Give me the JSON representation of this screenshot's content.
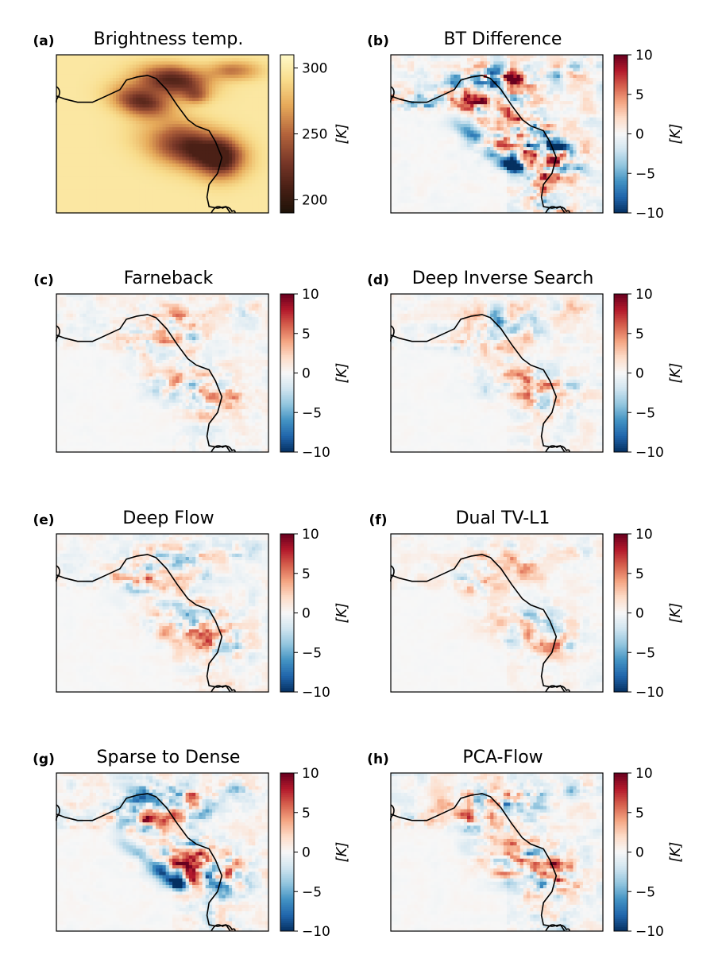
{
  "figure": {
    "panels": [
      {
        "letter": "(a)",
        "title": "Brightness temp.",
        "cmap": "afmhot",
        "ticks": [
          "300",
          "250",
          "200"
        ],
        "tick_values": [
          300,
          250,
          200
        ],
        "vmin": 190,
        "vmax": 310,
        "unit": "[K]"
      },
      {
        "letter": "(b)",
        "title": "BT Difference",
        "cmap": "RdBu_r",
        "ticks": [
          "10",
          "5",
          "0",
          "−5",
          "−10"
        ],
        "tick_values": [
          10,
          5,
          0,
          -5,
          -10
        ],
        "vmin": -10,
        "vmax": 10,
        "unit": "[K]",
        "pattern": {
          "strength": 1.0,
          "band": 1.0,
          "cold": 1.0,
          "seed": 2
        }
      },
      {
        "letter": "(c)",
        "title": "Farneback",
        "cmap": "RdBu_r",
        "ticks": [
          "10",
          "5",
          "0",
          "−5",
          "−10"
        ],
        "tick_values": [
          10,
          5,
          0,
          -5,
          -10
        ],
        "vmin": -10,
        "vmax": 10,
        "unit": "[K]",
        "pattern": {
          "strength": 0.55,
          "band": 0.35,
          "cold": 0.15,
          "seed": 3
        }
      },
      {
        "letter": "(d)",
        "title": "Deep Inverse Search",
        "cmap": "RdBu_r",
        "ticks": [
          "10",
          "5",
          "0",
          "−5",
          "−10"
        ],
        "tick_values": [
          10,
          5,
          0,
          -5,
          -10
        ],
        "vmin": -10,
        "vmax": 10,
        "unit": "[K]",
        "pattern": {
          "strength": 0.55,
          "band": 0.3,
          "cold": 0.1,
          "seed": 4
        }
      },
      {
        "letter": "(e)",
        "title": "Deep Flow",
        "cmap": "RdBu_r",
        "ticks": [
          "10",
          "5",
          "0",
          "−5",
          "−10"
        ],
        "tick_values": [
          10,
          5,
          0,
          -5,
          -10
        ],
        "vmin": -10,
        "vmax": 10,
        "unit": "[K]",
        "pattern": {
          "strength": 0.6,
          "band": 0.45,
          "cold": 0.1,
          "seed": 5
        }
      },
      {
        "letter": "(f)",
        "title": "Dual TV-L1",
        "cmap": "RdBu_r",
        "ticks": [
          "10",
          "5",
          "0",
          "−5",
          "−10"
        ],
        "tick_values": [
          10,
          5,
          0,
          -5,
          -10
        ],
        "vmin": -10,
        "vmax": 10,
        "unit": "[K]",
        "pattern": {
          "strength": 0.45,
          "band": 0.25,
          "cold": 0.05,
          "seed": 6
        }
      },
      {
        "letter": "(g)",
        "title": "Sparse to Dense",
        "cmap": "RdBu_r",
        "ticks": [
          "10",
          "5",
          "0",
          "−5",
          "−10"
        ],
        "tick_values": [
          10,
          5,
          0,
          -5,
          -10
        ],
        "vmin": -10,
        "vmax": 10,
        "unit": "[K]",
        "pattern": {
          "strength": 0.8,
          "band": 0.6,
          "cold": 0.75,
          "seed": 7
        }
      },
      {
        "letter": "(h)",
        "title": "PCA-Flow",
        "cmap": "RdBu_r",
        "ticks": [
          "10",
          "5",
          "0",
          "−5",
          "−10"
        ],
        "tick_values": [
          10,
          5,
          0,
          -5,
          -10
        ],
        "vmin": -10,
        "vmax": 10,
        "unit": "[K]",
        "pattern": {
          "strength": 0.75,
          "band": 0.65,
          "cold": 0.2,
          "seed": 8
        }
      }
    ]
  },
  "chart_data": [
    {
      "type": "heatmap",
      "title": "Brightness temp.",
      "colorbar_label": "[K]",
      "colorbar_range": [
        190,
        310
      ],
      "colorbar_ticks": [
        200,
        250,
        300
      ],
      "colormap": "afmhot (dark brown low → pale yellow high)",
      "features": "cold cloud band (~200–230 K) along coastline, warm background ~290–300 K"
    },
    {
      "type": "heatmap",
      "title": "BT Difference",
      "colorbar_label": "[K]",
      "colorbar_range": [
        -10,
        10
      ],
      "colorbar_ticks": [
        -10,
        -5,
        0,
        5,
        10
      ],
      "colormap": "RdBu_r"
    },
    {
      "type": "heatmap",
      "title": "Farneback",
      "colorbar_label": "[K]",
      "colorbar_range": [
        -10,
        10
      ],
      "colorbar_ticks": [
        -10,
        -5,
        0,
        5,
        10
      ],
      "colormap": "RdBu_r"
    },
    {
      "type": "heatmap",
      "title": "Deep Inverse Search",
      "colorbar_label": "[K]",
      "colorbar_range": [
        -10,
        10
      ],
      "colorbar_ticks": [
        -10,
        -5,
        0,
        5,
        10
      ],
      "colormap": "RdBu_r"
    },
    {
      "type": "heatmap",
      "title": "Deep Flow",
      "colorbar_label": "[K]",
      "colorbar_range": [
        -10,
        10
      ],
      "colorbar_ticks": [
        -10,
        -5,
        0,
        5,
        10
      ],
      "colormap": "RdBu_r"
    },
    {
      "type": "heatmap",
      "title": "Dual TV-L1",
      "colorbar_label": "[K]",
      "colorbar_range": [
        -10,
        10
      ],
      "colorbar_ticks": [
        -10,
        -5,
        0,
        5,
        10
      ],
      "colormap": "RdBu_r"
    },
    {
      "type": "heatmap",
      "title": "Sparse to Dense",
      "colorbar_label": "[K]",
      "colorbar_range": [
        -10,
        10
      ],
      "colorbar_ticks": [
        -10,
        -5,
        0,
        5,
        10
      ],
      "colormap": "RdBu_r"
    },
    {
      "type": "heatmap",
      "title": "PCA-Flow",
      "colorbar_label": "[K]",
      "colorbar_range": [
        -10,
        10
      ],
      "colorbar_ticks": [
        -10,
        -5,
        0,
        5,
        10
      ],
      "colormap": "RdBu_r"
    }
  ]
}
